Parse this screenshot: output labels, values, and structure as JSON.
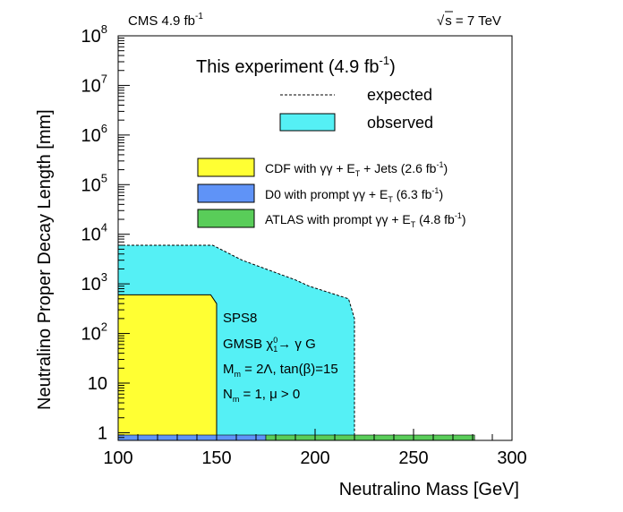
{
  "header": {
    "left_main": "CMS 4.9 fb",
    "left_sup": "-1",
    "right_rad": "√",
    "right_text": "s = 7 TeV"
  },
  "chart_data": {
    "type": "area",
    "xlabel": "Neutralino Mass [GeV]",
    "ylabel": "Neutralino Proper Decay Length [mm]",
    "xlim": [
      100,
      300
    ],
    "ylim": [
      0.7,
      100000000
    ],
    "log_y": true,
    "x_ticks": [
      "100",
      "150",
      "200",
      "250",
      "300"
    ],
    "y_ticks": [
      {
        "base": "1",
        "exp": ""
      },
      {
        "base": "10",
        "exp": ""
      },
      {
        "base": "10",
        "exp": "2"
      },
      {
        "base": "10",
        "exp": "3"
      },
      {
        "base": "10",
        "exp": "4"
      },
      {
        "base": "10",
        "exp": "5"
      },
      {
        "base": "10",
        "exp": "6"
      },
      {
        "base": "10",
        "exp": "7"
      },
      {
        "base": "10",
        "exp": "8"
      }
    ],
    "series": [
      {
        "name": "observed",
        "color": "#55f0f5",
        "points": [
          [
            100,
            0.7
          ],
          [
            100,
            6000
          ],
          [
            148,
            6000
          ],
          [
            163,
            3000
          ],
          [
            190,
            1200
          ],
          [
            197,
            900
          ],
          [
            217,
            500
          ],
          [
            220,
            200
          ],
          [
            220,
            0.7
          ]
        ]
      },
      {
        "name": "expected",
        "color": "#000000",
        "points": [
          [
            100,
            6000
          ],
          [
            148,
            6000
          ],
          [
            163,
            3000
          ],
          [
            190,
            1200
          ],
          [
            197,
            900
          ],
          [
            217,
            500
          ],
          [
            220,
            200
          ],
          [
            220,
            0.7
          ]
        ]
      },
      {
        "name": "CDF",
        "color": "#ffff33",
        "points": [
          [
            100,
            0.7
          ],
          [
            100,
            600
          ],
          [
            147,
            600
          ],
          [
            150,
            400
          ],
          [
            150,
            0.7
          ]
        ]
      },
      {
        "name": "D0",
        "color": "#5f93f7",
        "x_range": [
          100,
          175
        ]
      },
      {
        "name": "ATLAS",
        "color": "#59cd59",
        "x_range": [
          175,
          281
        ]
      }
    ],
    "legend": {
      "title_main": "This experiment (4.9 fb",
      "title_sup": "-1",
      "title_end": ")",
      "expected_label": "expected",
      "observed_label": "observed",
      "cdf_pre": "CDF with γγ + E",
      "cdf_sub": "T",
      "cdf_post": " + Jets (2.6 fb",
      "cdf_sup": "-1",
      "cdf_end": ")",
      "d0_pre": "D0 with prompt γγ + E",
      "d0_sub": "T",
      "d0_post": " (6.3 fb",
      "d0_sup": "-1",
      "d0_end": ")",
      "atlas_pre": "ATLAS with prompt γγ + E",
      "atlas_sub": "T",
      "atlas_post": " (4.8 fb",
      "atlas_sup": "-1",
      "atlas_end": ")"
    },
    "annotations": {
      "line1": "SPS8",
      "line2_pre": "GMSB χ",
      "line2_sup": "0",
      "line2_sub": "1",
      "line2_post": "→ γ G",
      "line3_pre": "M",
      "line3_sub": "m",
      "line3_post": " = 2Λ, tan(β)=15",
      "line4_pre": "N",
      "line4_sub": "m",
      "line4_post": " = 1, μ > 0"
    }
  }
}
